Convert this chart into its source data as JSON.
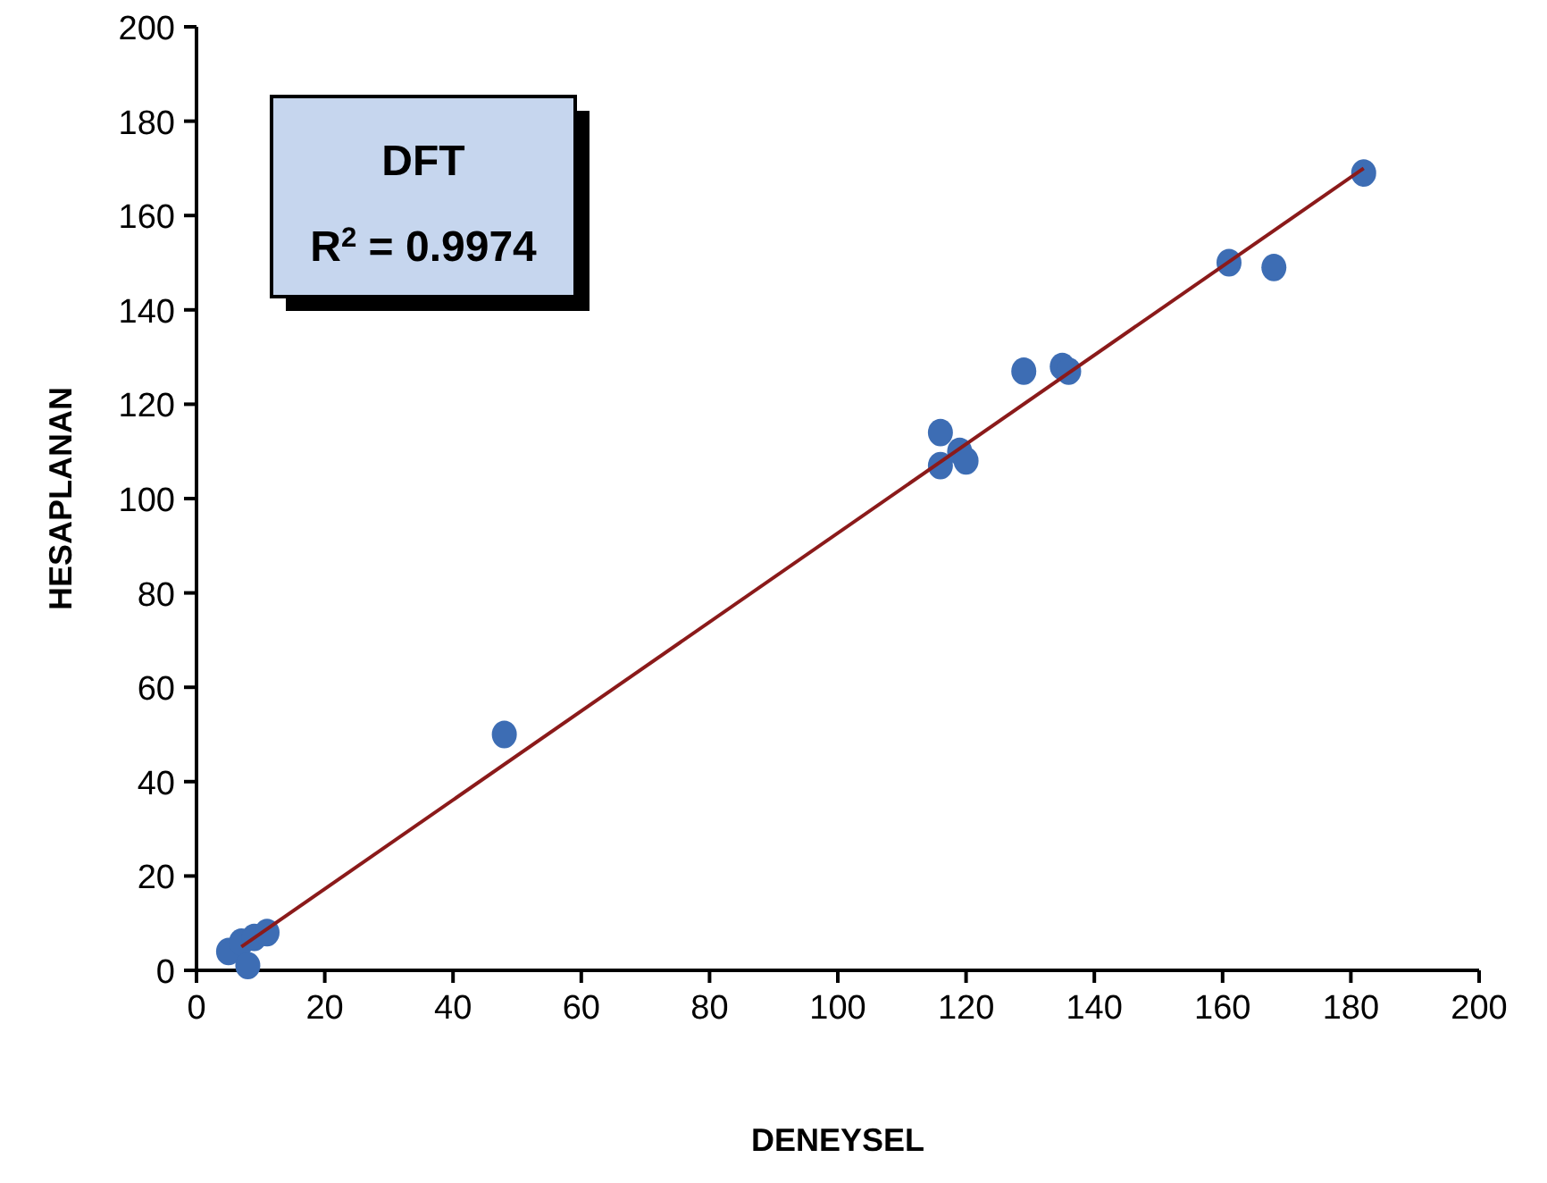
{
  "chart_data": {
    "type": "scatter",
    "title": "DFT",
    "annotations": [
      "R$^{2}$ = 0.9974"
    ],
    "xlabel": "DENEYSEL",
    "ylabel": "HESAPLANAN",
    "xlim": [
      0,
      200
    ],
    "ylim": [
      0,
      200
    ],
    "xticks": [
      0,
      20,
      40,
      60,
      80,
      100,
      120,
      140,
      160,
      180,
      200
    ],
    "yticks": [
      0,
      20,
      40,
      60,
      80,
      100,
      120,
      140,
      160,
      180,
      200
    ],
    "grid": false,
    "series": [
      {
        "marker": "circle",
        "color": "#3d6db4",
        "x": [
          5,
          7,
          9,
          11,
          8,
          48,
          116,
          116,
          119,
          120,
          129,
          135,
          136,
          161,
          168,
          182
        ],
        "values": [
          4,
          6,
          7,
          8,
          1,
          50,
          114,
          107,
          110,
          108,
          127,
          128,
          127,
          150,
          149,
          169
        ]
      },
      {
        "type": "line",
        "color": "#8b1a1a",
        "line_style": "solid",
        "x": [
          7,
          182
        ],
        "values": [
          5,
          170
        ]
      }
    ]
  }
}
